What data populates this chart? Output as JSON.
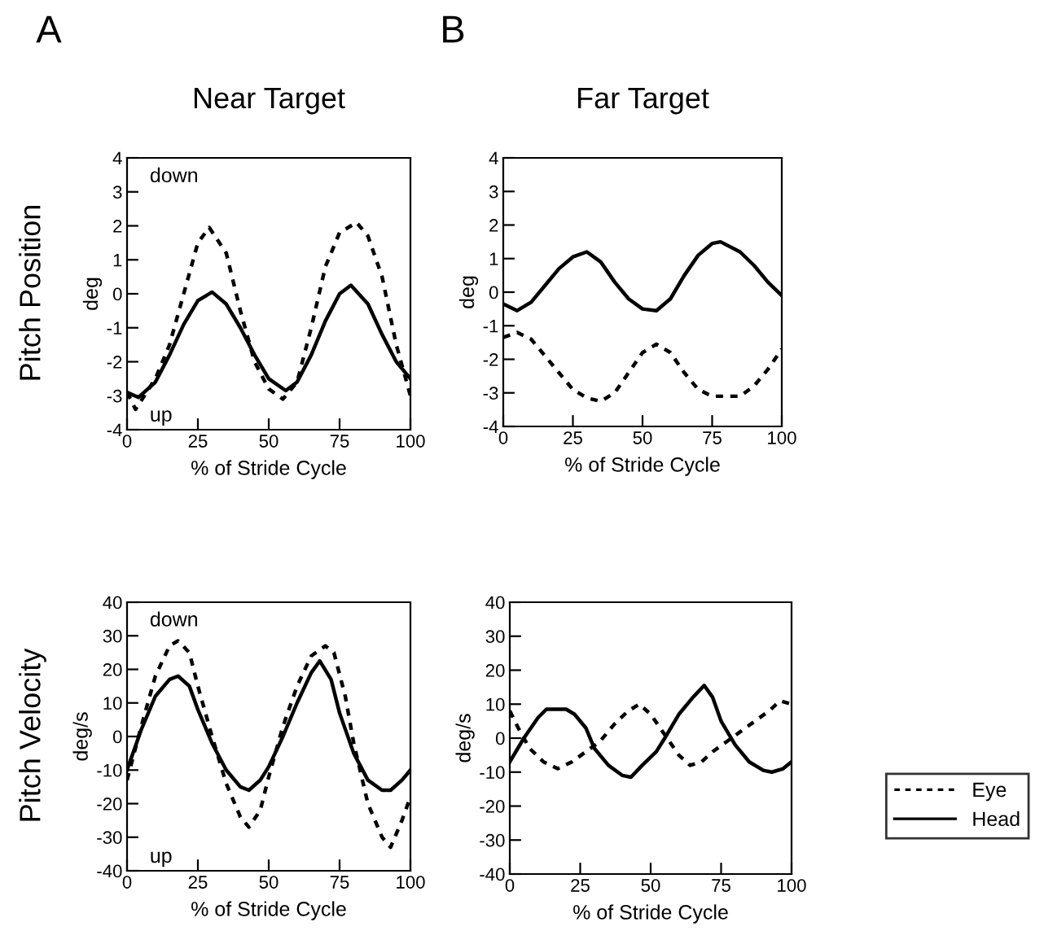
{
  "chart_data": [
    {
      "type": "line",
      "title": "Near Target",
      "xlabel": "% of Stride Cycle",
      "ylabel": "deg",
      "annotations": [
        "A",
        "Pitch Position",
        "down",
        "up"
      ],
      "xlim": [
        0,
        100
      ],
      "ylim": [
        -4,
        4
      ],
      "xticks": [
        0,
        25,
        50,
        75,
        100
      ],
      "yticks": [
        -4,
        -3,
        -2,
        -1,
        0,
        1,
        2,
        3,
        4
      ],
      "grid": false,
      "legend": false,
      "series": [
        {
          "color": "#000000",
          "line_style": "dotted",
          "x": [
            0,
            3,
            10,
            15,
            20,
            25,
            29,
            35,
            40,
            45,
            50,
            55,
            60,
            65,
            70,
            75,
            81,
            85,
            90,
            95,
            100
          ],
          "values": [
            -2.9,
            -3.4,
            -2.5,
            -1.5,
            0,
            1.5,
            1.95,
            1.2,
            -0.5,
            -2.0,
            -2.8,
            -3.1,
            -2.6,
            -1.0,
            0.8,
            1.8,
            2.1,
            1.7,
            0.5,
            -1.5,
            -3.0
          ]
        },
        {
          "color": "#000000",
          "line_style": "solid",
          "x": [
            0,
            4,
            10,
            15,
            20,
            25,
            30,
            35,
            40,
            45,
            50,
            56,
            60,
            65,
            70,
            75,
            79,
            85,
            90,
            95,
            100
          ],
          "values": [
            -2.9,
            -3.05,
            -2.6,
            -1.8,
            -0.9,
            -0.2,
            0.05,
            -0.3,
            -1.0,
            -1.8,
            -2.5,
            -2.85,
            -2.6,
            -1.8,
            -0.8,
            0.0,
            0.25,
            -0.3,
            -1.2,
            -2.0,
            -2.5
          ]
        }
      ]
    },
    {
      "type": "line",
      "title": "Far Target",
      "xlabel": "% of Stride Cycle",
      "ylabel": "deg",
      "annotations": [
        "B"
      ],
      "xlim": [
        0,
        100
      ],
      "ylim": [
        -4,
        4
      ],
      "xticks": [
        0,
        25,
        50,
        75,
        100
      ],
      "yticks": [
        -4,
        -3,
        -2,
        -1,
        0,
        1,
        2,
        3,
        4
      ],
      "grid": false,
      "legend": false,
      "series": [
        {
          "color": "#000000",
          "line_style": "dotted",
          "x": [
            0,
            5,
            10,
            15,
            20,
            25,
            30,
            35,
            40,
            45,
            50,
            55,
            60,
            65,
            70,
            75,
            80,
            85,
            90,
            95,
            100
          ],
          "values": [
            -1.35,
            -1.2,
            -1.4,
            -1.9,
            -2.4,
            -2.9,
            -3.15,
            -3.25,
            -3.0,
            -2.4,
            -1.8,
            -1.55,
            -1.8,
            -2.4,
            -2.9,
            -3.1,
            -3.1,
            -3.1,
            -2.8,
            -2.3,
            -1.7
          ]
        },
        {
          "color": "#000000",
          "line_style": "solid",
          "x": [
            0,
            5,
            10,
            15,
            20,
            25,
            30,
            35,
            40,
            45,
            50,
            55,
            60,
            65,
            70,
            75,
            78,
            85,
            90,
            95,
            100
          ],
          "values": [
            -0.35,
            -0.55,
            -0.3,
            0.2,
            0.7,
            1.05,
            1.2,
            0.9,
            0.3,
            -0.2,
            -0.5,
            -0.55,
            -0.2,
            0.5,
            1.1,
            1.45,
            1.5,
            1.2,
            0.8,
            0.3,
            -0.1
          ]
        }
      ]
    },
    {
      "type": "line",
      "xlabel": "% of Stride Cycle",
      "ylabel": "deg/s",
      "annotations": [
        "Pitch Velocity",
        "down",
        "up"
      ],
      "xlim": [
        0,
        100
      ],
      "ylim": [
        -40,
        40
      ],
      "xticks": [
        0,
        25,
        50,
        75,
        100
      ],
      "yticks": [
        -40,
        -30,
        -20,
        -10,
        0,
        10,
        20,
        30,
        40
      ],
      "grid": false,
      "legend": false,
      "series": [
        {
          "color": "#000000",
          "line_style": "dotted",
          "x": [
            0,
            5,
            10,
            15,
            18,
            22,
            25,
            30,
            35,
            40,
            43,
            47,
            50,
            55,
            60,
            65,
            70,
            73,
            77,
            80,
            85,
            90,
            93,
            97,
            100
          ],
          "values": [
            -13,
            3,
            18,
            27,
            28.5,
            25,
            15,
            0,
            -14,
            -24,
            -27,
            -22,
            -12,
            3,
            15,
            24,
            27,
            25,
            12,
            -2,
            -20,
            -30,
            -33,
            -25,
            -18
          ]
        },
        {
          "color": "#000000",
          "line_style": "solid",
          "x": [
            0,
            5,
            10,
            15,
            18,
            22,
            25,
            30,
            35,
            40,
            43,
            47,
            50,
            55,
            60,
            65,
            68,
            72,
            75,
            80,
            85,
            90,
            93,
            97,
            100
          ],
          "values": [
            -10,
            2,
            12,
            17,
            18,
            15,
            8,
            -2,
            -10,
            -15,
            -16,
            -13,
            -9,
            0,
            10,
            19,
            22.5,
            17,
            7,
            -5,
            -13,
            -16,
            -16,
            -13,
            -10
          ]
        }
      ]
    },
    {
      "type": "line",
      "xlabel": "% of Stride Cycle",
      "ylabel": "deg/s",
      "xlim": [
        0,
        100
      ],
      "ylim": [
        -40,
        40
      ],
      "xticks": [
        0,
        25,
        50,
        75,
        100
      ],
      "yticks": [
        -40,
        -30,
        -20,
        -10,
        0,
        10,
        20,
        30,
        40
      ],
      "grid": false,
      "legend": "right",
      "series": [
        {
          "name": "Eye",
          "color": "#000000",
          "line_style": "dotted",
          "x": [
            0,
            3,
            7,
            12,
            17,
            22,
            27,
            32,
            37,
            42,
            46,
            50,
            55,
            60,
            64,
            68,
            72,
            77,
            82,
            87,
            92,
            96,
            100
          ],
          "values": [
            8,
            3,
            -3,
            -7,
            -9,
            -7,
            -4,
            -1,
            4,
            8,
            10,
            7,
            1,
            -5,
            -8,
            -7,
            -4,
            -1,
            2,
            5,
            8,
            11,
            10
          ]
        },
        {
          "name": "Head",
          "color": "#000000",
          "line_style": "solid",
          "x": [
            0,
            5,
            10,
            13,
            20,
            23,
            27,
            30,
            35,
            40,
            43,
            47,
            52,
            55,
            60,
            65,
            69,
            72,
            75,
            80,
            85,
            90,
            93,
            97,
            100
          ],
          "values": [
            -7,
            0,
            6,
            8.5,
            8.5,
            7,
            3,
            -3,
            -8,
            -11,
            -11.5,
            -8,
            -4,
            0,
            7,
            12,
            15.5,
            12,
            5,
            -2,
            -7,
            -9.5,
            -10,
            -9,
            -7
          ]
        }
      ]
    }
  ]
}
